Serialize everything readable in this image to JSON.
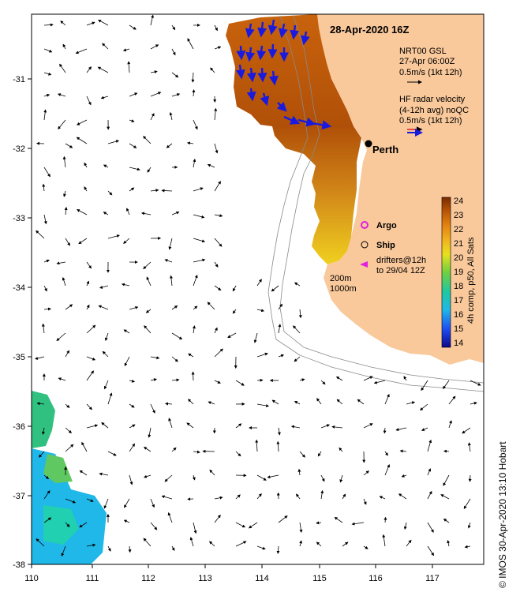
{
  "map": {
    "title": "28-Apr-2020 16Z",
    "city": "Perth",
    "x_ticks": [
      "110",
      "111",
      "112",
      "113",
      "114",
      "115",
      "116",
      "117"
    ],
    "y_ticks": [
      "-31",
      "-32",
      "-33",
      "-34",
      "-35",
      "-36",
      "-37",
      "-38"
    ],
    "legend": {
      "model_label_1": "NRT00 GSL",
      "model_label_2": "27-Apr 06:00Z",
      "model_label_3": "0.5m/s (1kt 12h)",
      "radar_label_1": "HF radar velocity",
      "radar_label_2": "(4-12h avg) noQC",
      "radar_label_3": "0.5m/s (1kt 12h)",
      "argo": "Argo",
      "ship": "Ship",
      "drifters_1": "drifters@12h",
      "drifters_2": "to 29/04 12Z",
      "depth_1": "200m",
      "depth_2": "1000m"
    },
    "colorbar": {
      "ticks": [
        "24",
        "23",
        "22",
        "21",
        "20",
        "19",
        "18",
        "17",
        "16",
        "15",
        "14"
      ],
      "label": "4h comp, p50, All Sats"
    },
    "credit": "© IMOS 30-Apr-2020 13:10 Hobart",
    "colors": {
      "land": "#f9c89b",
      "ocean": "#ffffff",
      "radar_arrow": "#1a1adf",
      "argo": "#e020e0"
    }
  }
}
